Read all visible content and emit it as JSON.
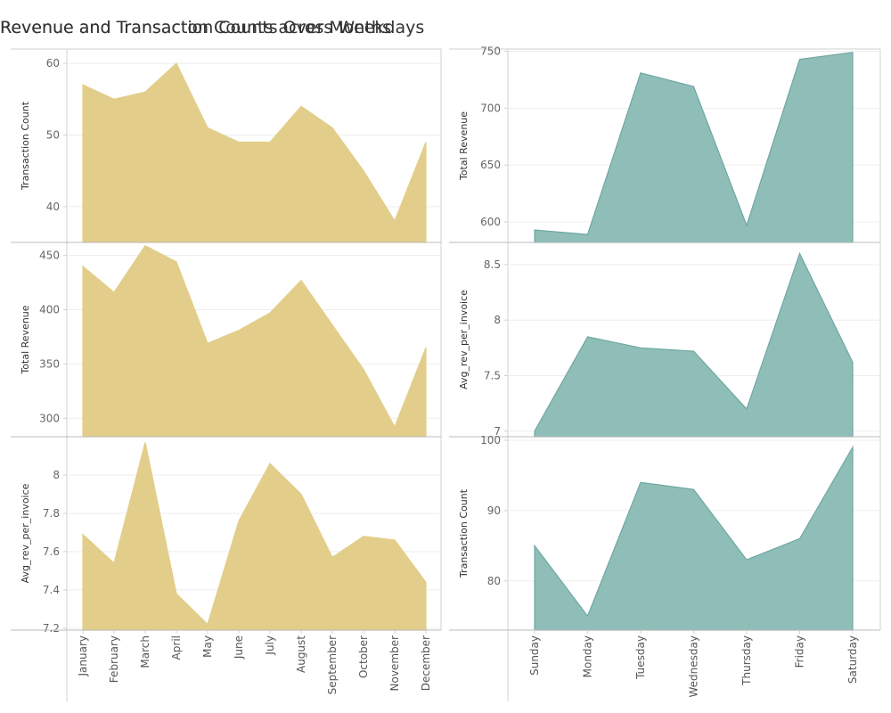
{
  "left_title": "Revenue and Transaction Counts Over Months",
  "right_title": "Revenue and Transacton Counts across Weekdays",
  "colors": {
    "monthly_fill": "#E2CE8A",
    "weekday_fill": "#8FBEB9",
    "weekday_line": "#6FA7A1"
  },
  "chart_data": [
    {
      "type": "area",
      "ylabel": "Transaction Count",
      "categories": [
        "January",
        "February",
        "March",
        "April",
        "May",
        "June",
        "July",
        "August",
        "September",
        "October",
        "November",
        "December"
      ],
      "values": [
        57,
        55,
        56,
        60,
        51,
        49,
        49,
        54,
        51,
        45,
        38,
        49
      ],
      "ylim": [
        35,
        62
      ],
      "yticks": [
        40,
        50,
        60
      ]
    },
    {
      "type": "area",
      "ylabel": "Total Revenue",
      "categories": [
        "January",
        "February",
        "March",
        "April",
        "May",
        "June",
        "July",
        "August",
        "September",
        "October",
        "November",
        "December"
      ],
      "values": [
        440,
        416,
        459,
        444,
        369,
        381,
        397,
        427,
        386,
        345,
        292,
        365
      ],
      "ylim": [
        283,
        462
      ],
      "yticks": [
        300,
        350,
        400,
        450
      ]
    },
    {
      "type": "area",
      "ylabel": "Avg_rev_per_invoice",
      "categories": [
        "January",
        "February",
        "March",
        "April",
        "May",
        "June",
        "July",
        "August",
        "September",
        "October",
        "November",
        "December"
      ],
      "values": [
        7.69,
        7.54,
        8.17,
        7.38,
        7.22,
        7.76,
        8.06,
        7.9,
        7.57,
        7.68,
        7.66,
        7.44
      ],
      "ylim": [
        7.19,
        8.2
      ],
      "yticks": [
        7.2,
        7.4,
        7.6,
        7.8,
        8.0
      ]
    },
    {
      "type": "area",
      "ylabel": "Total Revenue",
      "categories": [
        "Sunday",
        "Monday",
        "Tuesday",
        "Wednesday",
        "Thursday",
        "Friday",
        "Saturday"
      ],
      "values": [
        593,
        589,
        731,
        719,
        597,
        743,
        749
      ],
      "ylim": [
        582,
        752
      ],
      "yticks": [
        600,
        650,
        700,
        750
      ]
    },
    {
      "type": "area",
      "ylabel": "Avg_rev_per_invoice",
      "categories": [
        "Sunday",
        "Monday",
        "Tuesday",
        "Wednesday",
        "Thursday",
        "Friday",
        "Saturday"
      ],
      "values": [
        7.0,
        7.85,
        7.75,
        7.72,
        7.2,
        8.6,
        7.62
      ],
      "ylim": [
        6.95,
        8.7
      ],
      "yticks": [
        7.0,
        7.5,
        8.0,
        8.5
      ]
    },
    {
      "type": "area",
      "ylabel": "Transaction Count",
      "categories": [
        "Sunday",
        "Monday",
        "Tuesday",
        "Wednesday",
        "Thursday",
        "Friday",
        "Saturday"
      ],
      "values": [
        85,
        75,
        94,
        93,
        83,
        86,
        99
      ],
      "ylim": [
        73,
        100.5
      ],
      "yticks": [
        80,
        90,
        100
      ]
    }
  ]
}
